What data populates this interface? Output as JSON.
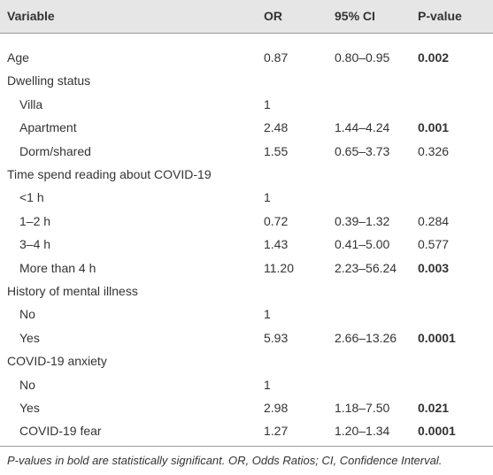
{
  "table": {
    "header": [
      "Variable",
      "OR",
      "95% CI",
      "P-value"
    ],
    "rows": [
      {
        "variable": "Age",
        "or": "0.87",
        "ci": "0.80–0.95",
        "p": "0.002",
        "bold": true,
        "indent": false
      },
      {
        "variable": "Dwelling status",
        "indent": false
      },
      {
        "variable": "Villa",
        "or": "1",
        "indent": true
      },
      {
        "variable": "Apartment",
        "or": "2.48",
        "ci": "1.44–4.24",
        "p": "0.001",
        "bold": true,
        "indent": true
      },
      {
        "variable": "Dorm/shared",
        "or": "1.55",
        "ci": "0.65–3.73",
        "p": "0.326",
        "bold": false,
        "indent": true
      },
      {
        "variable": "Time spend reading about COVID-19",
        "indent": false
      },
      {
        "variable": "<1 h",
        "or": "1",
        "indent": true
      },
      {
        "variable": "1–2 h",
        "or": "0.72",
        "ci": "0.39–1.32",
        "p": "0.284",
        "bold": false,
        "indent": true
      },
      {
        "variable": "3–4 h",
        "or": "1.43",
        "ci": "0.41–5.00",
        "p": "0.577",
        "bold": false,
        "indent": true
      },
      {
        "variable": "More than 4 h",
        "or": "11.20",
        "ci": "2.23–56.24",
        "p": "0.003",
        "bold": true,
        "indent": true
      },
      {
        "variable": "History of mental illness",
        "indent": false
      },
      {
        "variable": "No",
        "or": "1",
        "indent": true
      },
      {
        "variable": "Yes",
        "or": "5.93",
        "ci": "2.66–13.26",
        "p": "0.0001",
        "bold": true,
        "indent": true
      },
      {
        "variable": "COVID-19 anxiety",
        "indent": false
      },
      {
        "variable": "No",
        "or": "1",
        "indent": true
      },
      {
        "variable": "Yes",
        "or": "2.98",
        "ci": "1.18–7.50",
        "p": "0.021",
        "bold": true,
        "indent": true
      },
      {
        "variable": "COVID-19 fear",
        "or": "1.27",
        "ci": "1.20–1.34",
        "p": "0.0001",
        "bold": true,
        "indent": true
      }
    ],
    "footnote": "P-values in bold are statistically significant. OR, Odds Ratios; CI, Confidence Interval."
  }
}
